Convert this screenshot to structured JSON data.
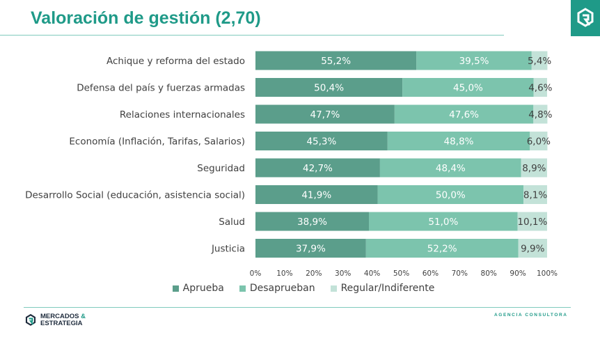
{
  "header": {
    "title": "Valoración de gestión (2,70)"
  },
  "brand": {
    "line1": "MERCADOS",
    "amp": "&",
    "line2": "ESTRATEGIA",
    "tagline": "AGENCIA CONSULTORA",
    "logo_icon": "brand-mark-icon"
  },
  "colors": {
    "aprueba": "#5b9e8b",
    "desaprueban": "#7cc4ad",
    "regular": "#c3e2d8",
    "accent": "#1f9a88"
  },
  "chart_data": {
    "type": "bar",
    "orientation": "horizontal",
    "stacked": true,
    "title": "",
    "xlabel": "",
    "ylabel": "",
    "xlim": [
      0,
      100
    ],
    "x_ticks": [
      "0%",
      "10%",
      "20%",
      "30%",
      "40%",
      "50%",
      "60%",
      "70%",
      "80%",
      "90%",
      "100%"
    ],
    "grid": false,
    "legend_position": "bottom",
    "categories": [
      "Achique y reforma del estado",
      "Defensa del país y fuerzas armadas",
      "Relaciones internacionales",
      "Economía (Inflación, Tarifas, Salarios)",
      "Seguridad",
      "Desarrollo Social (educación, asistencia social)",
      "Salud",
      "Justicia"
    ],
    "series": [
      {
        "name": "Aprueba",
        "color": "#5b9e8b",
        "values": [
          55.2,
          50.4,
          47.7,
          45.3,
          42.7,
          41.9,
          38.9,
          37.9
        ],
        "labels": [
          "55,2%",
          "50,4%",
          "47,7%",
          "45,3%",
          "42,7%",
          "41,9%",
          "38,9%",
          "37,9%"
        ]
      },
      {
        "name": "Desaprueban",
        "color": "#7cc4ad",
        "values": [
          39.5,
          45.0,
          47.6,
          48.8,
          48.4,
          50.0,
          51.0,
          52.2
        ],
        "labels": [
          "39,5%",
          "45,0%",
          "47,6%",
          "48,8%",
          "48,4%",
          "50,0%",
          "51,0%",
          "52,2%"
        ]
      },
      {
        "name": "Regular/Indiferente",
        "color": "#c3e2d8",
        "values": [
          5.4,
          4.6,
          4.8,
          6.0,
          8.9,
          8.1,
          10.1,
          9.9
        ],
        "labels": [
          "5,4%",
          "4,6%",
          "4,8%",
          "6,0%",
          "8,9%",
          "8,1%",
          "10,1%",
          "9,9%"
        ]
      }
    ]
  }
}
